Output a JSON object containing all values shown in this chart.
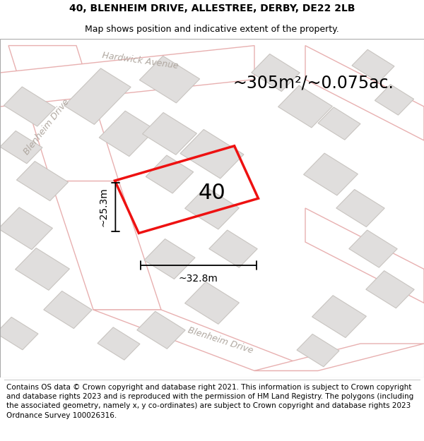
{
  "title_line1": "40, BLENHEIM DRIVE, ALLESTREE, DERBY, DE22 2LB",
  "title_line2": "Map shows position and indicative extent of the property.",
  "area_text": "~305m²/~0.075ac.",
  "property_number": "40",
  "dim_width": "~32.8m",
  "dim_height": "~25.3m",
  "footer_text": "Contains OS data © Crown copyright and database right 2021. This information is subject to Crown copyright and database rights 2023 and is reproduced with the permission of HM Land Registry. The polygons (including the associated geometry, namely x, y co-ordinates) are subject to Crown copyright and database rights 2023 Ordnance Survey 100026316.",
  "map_bg": "#f2f0ed",
  "road_fill": "#ffffff",
  "building_fill": "#e0dedd",
  "building_edge": "#c8c4c0",
  "pink_road": "#e8b0b0",
  "red_property": "#ee1111",
  "label_color": "#b0a8a0",
  "black": "#000000",
  "white": "#ffffff",
  "title_fontsize": 10,
  "subtitle_fontsize": 9,
  "area_fontsize": 17,
  "number_fontsize": 22,
  "dim_fontsize": 10,
  "footer_fontsize": 7.5,
  "road_label_fontsize": 9,
  "road_lw": 1.0
}
